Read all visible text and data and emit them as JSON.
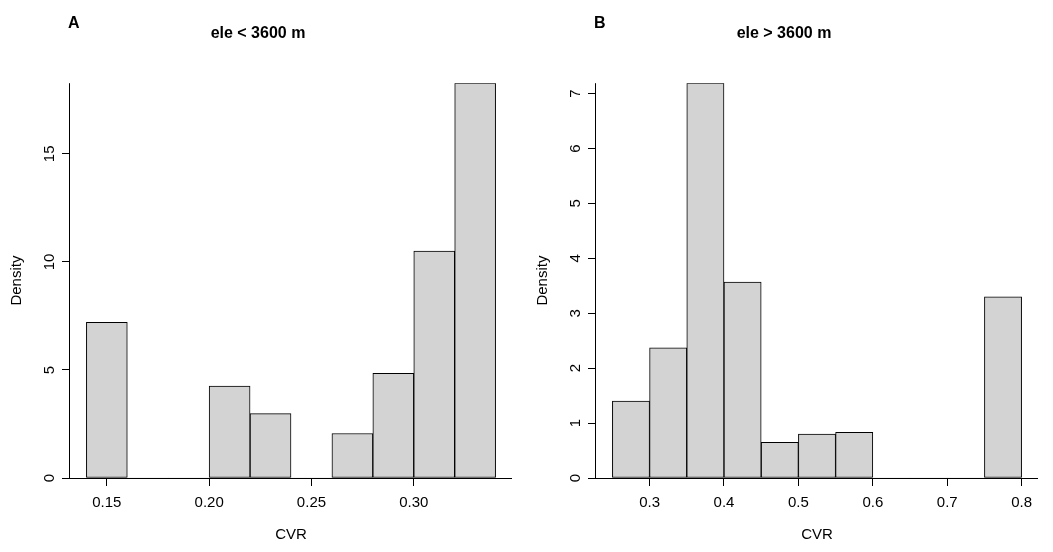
{
  "chart_data": [
    {
      "type": "histogram",
      "title": "ele < 3600 m",
      "annotations": [
        "A"
      ],
      "xlabel": "CVR",
      "ylabel": "Density",
      "color": "#d3d3d3",
      "bins": [
        0.14,
        0.16,
        0.18,
        0.2,
        0.22,
        0.24,
        0.26,
        0.28,
        0.3,
        0.32,
        0.34
      ],
      "values": [
        7.2,
        0,
        0,
        4.25,
        2.98,
        0,
        2.06,
        4.84,
        10.5,
        18.27
      ],
      "xlim": [
        0.132,
        0.348
      ],
      "xticks": [
        {
          "value": 0.15,
          "label": "0.15"
        },
        {
          "value": 0.2,
          "label": "0.20"
        },
        {
          "value": 0.25,
          "label": "0.25"
        },
        {
          "value": 0.3,
          "label": "0.30"
        }
      ],
      "ylim": [
        0,
        18.27
      ],
      "yticks": [
        0,
        5,
        10,
        15
      ]
    },
    {
      "type": "histogram",
      "title": "ele > 3600 m",
      "annotations": [
        "B"
      ],
      "xlabel": "CVR",
      "ylabel": "Density",
      "color": "#d3d3d3",
      "bins": [
        0.25,
        0.3,
        0.35,
        0.4,
        0.45,
        0.5,
        0.55,
        0.6,
        0.65,
        0.7,
        0.75,
        0.8
      ],
      "values": [
        1.4,
        2.37,
        7.19,
        3.57,
        0.65,
        0.8,
        0.83,
        0,
        0,
        0,
        3.3
      ],
      "xlim": [
        0.228,
        0.822
      ],
      "xticks": [
        0.3,
        0.4,
        0.5,
        0.6,
        0.7,
        0.8
      ],
      "ylim": [
        0,
        7.19
      ],
      "yticks": [
        0,
        1,
        2,
        3,
        4,
        5,
        6,
        7
      ]
    }
  ]
}
